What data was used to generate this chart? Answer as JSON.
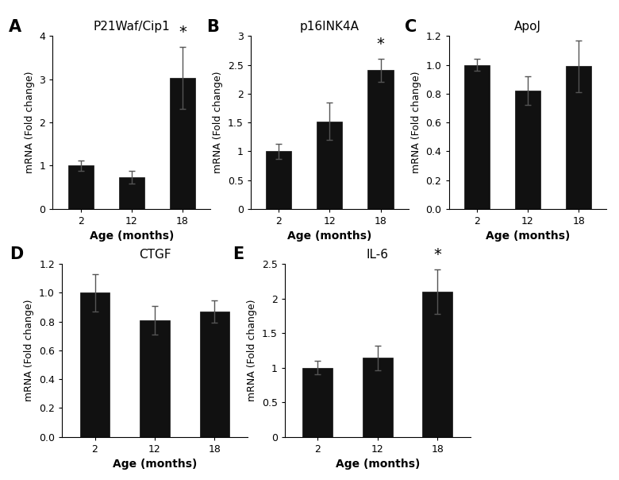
{
  "panels": [
    {
      "label": "A",
      "title": "P21Waf/Cip1",
      "categories": [
        "2",
        "12",
        "18"
      ],
      "values": [
        1.0,
        0.73,
        3.03
      ],
      "errors": [
        0.12,
        0.15,
        0.72
      ],
      "ylim": [
        0,
        4
      ],
      "yticks": [
        0,
        1,
        2,
        3,
        4
      ],
      "significant": [
        false,
        false,
        true
      ],
      "ylabel": "mRNA (Fold change)",
      "xlabel": "Age (months)"
    },
    {
      "label": "B",
      "title": "p16INK4A",
      "categories": [
        "2",
        "12",
        "18"
      ],
      "values": [
        1.0,
        1.52,
        2.41
      ],
      "errors": [
        0.13,
        0.32,
        0.2
      ],
      "ylim": [
        0,
        3.0
      ],
      "yticks": [
        0.0,
        0.5,
        1.0,
        1.5,
        2.0,
        2.5,
        3.0
      ],
      "significant": [
        false,
        false,
        true
      ],
      "ylabel": "mRNA (Fold change)",
      "xlabel": "Age (months)"
    },
    {
      "label": "C",
      "title": "ApoJ",
      "categories": [
        "2",
        "12",
        "18"
      ],
      "values": [
        1.0,
        0.82,
        0.99
      ],
      "errors": [
        0.04,
        0.1,
        0.18
      ],
      "ylim": [
        0,
        1.2
      ],
      "yticks": [
        0.0,
        0.2,
        0.4,
        0.6,
        0.8,
        1.0,
        1.2
      ],
      "significant": [
        false,
        false,
        false
      ],
      "ylabel": "mRNA (Fold change)",
      "xlabel": "Age (months)"
    },
    {
      "label": "D",
      "title": "CTGF",
      "categories": [
        "2",
        "12",
        "18"
      ],
      "values": [
        1.0,
        0.81,
        0.87
      ],
      "errors": [
        0.13,
        0.1,
        0.08
      ],
      "ylim": [
        0,
        1.2
      ],
      "yticks": [
        0.0,
        0.2,
        0.4,
        0.6,
        0.8,
        1.0,
        1.2
      ],
      "significant": [
        false,
        false,
        false
      ],
      "ylabel": "mRNA (Fold change)",
      "xlabel": "Age (months)"
    },
    {
      "label": "E",
      "title": "IL-6",
      "categories": [
        "2",
        "12",
        "18"
      ],
      "values": [
        1.0,
        1.14,
        2.1
      ],
      "errors": [
        0.1,
        0.18,
        0.32
      ],
      "ylim": [
        0,
        2.5
      ],
      "yticks": [
        0.0,
        0.5,
        1.0,
        1.5,
        2.0,
        2.5
      ],
      "significant": [
        false,
        false,
        true
      ],
      "ylabel": "mRNA (Fold change)",
      "xlabel": "Age (months)"
    }
  ],
  "bar_color": "#111111",
  "bar_edgecolor": "#111111",
  "error_color": "#555555",
  "bar_width": 0.5,
  "label_fontsize": 15,
  "title_fontsize": 11,
  "tick_fontsize": 9,
  "axis_label_fontsize": 10,
  "star_fontsize": 14,
  "ylabel_fontsize": 9
}
